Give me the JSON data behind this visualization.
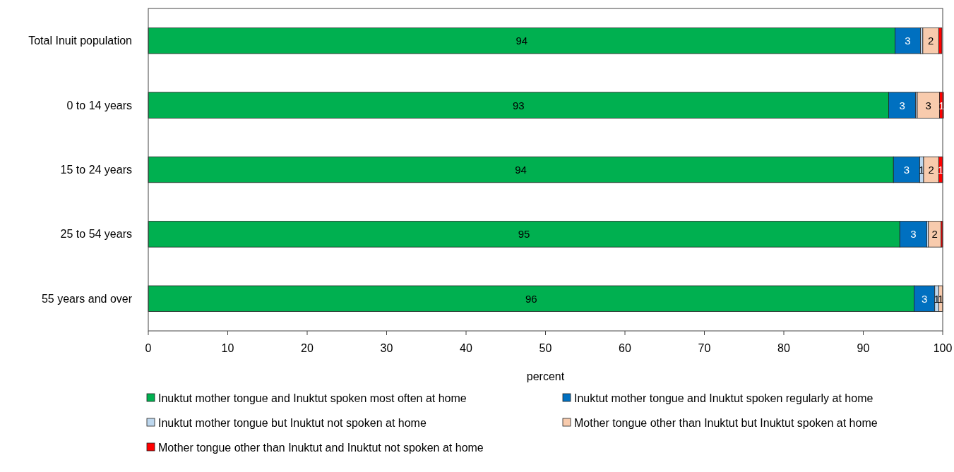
{
  "chart_data": {
    "type": "bar",
    "orientation": "horizontal",
    "stacked": true,
    "xlabel": "percent",
    "xlim": [
      0,
      100
    ],
    "xticks": [
      0,
      10,
      20,
      30,
      40,
      50,
      60,
      70,
      80,
      90,
      100
    ],
    "legend": "bottom",
    "grid": false,
    "categories": [
      "Total Inuit population",
      "0 to 14 years",
      "15 to 24 years",
      "25 to 54 years",
      "55 years and over"
    ],
    "series": [
      {
        "name": "Inuktut mother tongue and Inuktut spoken most often at home",
        "color": "#00b050",
        "values": [
          94.0,
          93.2,
          93.8,
          94.6,
          96.4
        ],
        "value_labels": [
          "94",
          "93",
          "94",
          "95",
          "96"
        ]
      },
      {
        "name": "Inuktut mother tongue and Inuktut spoken regularly at home",
        "color": "#0070c0",
        "values": [
          3.2,
          3.4,
          3.3,
          3.4,
          2.6
        ],
        "value_labels": [
          "3",
          "3",
          "3",
          "3",
          "3"
        ]
      },
      {
        "name": "Inuktut mother tongue but Inuktut not spoken at home",
        "color": "#bdd7ee",
        "values": [
          0.3,
          0.2,
          0.5,
          0.2,
          0.5
        ],
        "value_labels": [
          null,
          null,
          "1",
          null,
          "1"
        ]
      },
      {
        "name": "Mother tongue other than Inuktut but Inuktut spoken at home",
        "color": "#f8cbad",
        "values": [
          2.0,
          2.8,
          1.9,
          1.6,
          0.5
        ],
        "value_labels": [
          "2",
          "3",
          "2",
          "2",
          "1"
        ]
      },
      {
        "name": "Mother tongue other than Inuktut and Inuktut not spoken at home",
        "color": "#ff0000",
        "values": [
          0.4,
          0.5,
          0.5,
          0.2,
          0.0
        ],
        "value_labels": [
          null,
          "1",
          "1",
          null,
          null
        ]
      }
    ]
  }
}
